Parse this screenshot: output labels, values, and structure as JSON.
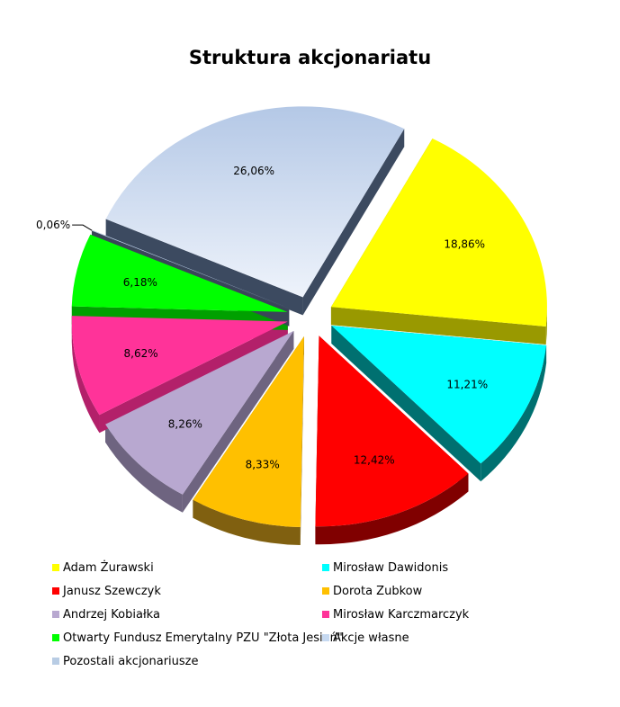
{
  "chart_data": {
    "type": "pie",
    "title": "Struktura akcjonariatu",
    "slices": [
      {
        "name": "Adam Żurawski",
        "value": 18.86,
        "label": "18,86%",
        "color": "#ffff00",
        "side": "#999900"
      },
      {
        "name": "Mirosław Dawidonis",
        "value": 11.21,
        "label": "11,21%",
        "color": "#00ffff",
        "side": "#007070"
      },
      {
        "name": "Janusz Szewczyk",
        "value": 12.42,
        "label": "12,42%",
        "color": "#ff0000",
        "side": "#800000"
      },
      {
        "name": "Dorota Zubkow",
        "value": 8.33,
        "label": "8,33%",
        "color": "#ffc000",
        "side": "#806010"
      },
      {
        "name": "Andrzej Kobiałka",
        "value": 8.26,
        "label": "8,26%",
        "color": "#b8a8d0",
        "side": "#6e6480"
      },
      {
        "name": "Mirosław Karczmarczyk",
        "value": 8.62,
        "label": "8,62%",
        "color": "#ff3399",
        "side": "#b3206a"
      },
      {
        "name": "Otwarty Fundusz Emerytalny  PZU \"Złota Jesień\"",
        "value": 6.18,
        "label": "6,18%",
        "color": "#00ff00",
        "side": "#00a000"
      },
      {
        "name": "Akcje własne",
        "value": 0.06,
        "label": "0,06%",
        "color": "#c6d9f1",
        "side": "#3a4558"
      },
      {
        "name": "Pozostali akcjonariusze",
        "value": 26.06,
        "label": "26,06%",
        "color": "#b8cce4",
        "side": "#3c4a60"
      }
    ],
    "legend_position": "bottom"
  }
}
